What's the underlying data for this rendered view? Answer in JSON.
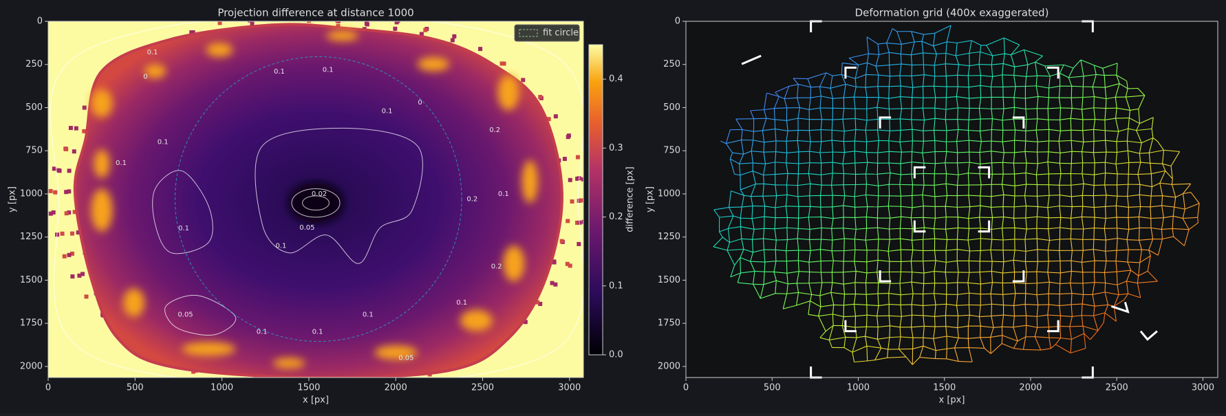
{
  "chart_data": [
    {
      "type": "heatmap",
      "title": "Projection difference at distance 1000",
      "xlabel": "x [px]",
      "ylabel": "y [px]",
      "xlim": [
        0,
        3080
      ],
      "ylim": [
        2064,
        0
      ],
      "xticks": [
        0,
        500,
        1000,
        1500,
        2000,
        2500,
        3000
      ],
      "yticks": [
        0,
        250,
        500,
        750,
        1000,
        1250,
        1500,
        1750,
        2000
      ],
      "colorbar": {
        "label": "difference [px]",
        "clim": [
          0,
          0.45
        ],
        "ticks": [
          {
            "value": 0,
            "label": "0.0"
          },
          0.1,
          0.2,
          0.3,
          0.4
        ]
      },
      "legend": {
        "label": "fit circle",
        "corner": "upper right"
      },
      "fit_circle": {
        "cx": 1555,
        "cy": 1030,
        "r": 825
      },
      "contour_labels": [
        {
          "x": 1560,
          "y": 1000,
          "value": 0.02
        },
        {
          "x": 1490,
          "y": 1195,
          "value": 0.05
        },
        {
          "x": 1340,
          "y": 1300,
          "value": 0.1
        },
        {
          "x": 780,
          "y": 1200,
          "value": 0.1
        },
        {
          "x": 660,
          "y": 700,
          "value": 0.1
        },
        {
          "x": 1950,
          "y": 520,
          "value": 0.1
        },
        {
          "x": 2140,
          "y": 470,
          "value": 0
        },
        {
          "x": 1840,
          "y": 1700,
          "value": 0.1
        },
        {
          "x": 1550,
          "y": 1800,
          "value": 0.1
        },
        {
          "x": 1230,
          "y": 1800,
          "value": 0.1
        },
        {
          "x": 790,
          "y": 1700,
          "value": 0.05
        },
        {
          "x": 2380,
          "y": 1630,
          "value": 0.1
        },
        {
          "x": 2580,
          "y": 1420,
          "value": 0.2
        },
        {
          "x": 2570,
          "y": 630,
          "value": 0.2
        },
        {
          "x": 2440,
          "y": 1030,
          "value": 0.2
        },
        {
          "x": 2620,
          "y": 1000,
          "value": 0.1
        },
        {
          "x": 600,
          "y": 180,
          "value": 0.1
        },
        {
          "x": 560,
          "y": 320,
          "value": 0
        },
        {
          "x": 1330,
          "y": 290,
          "value": 0.1
        },
        {
          "x": 1610,
          "y": 280,
          "value": 0.1
        },
        {
          "x": 2060,
          "y": 1950,
          "value": 0.05
        },
        {
          "x": 420,
          "y": 820,
          "value": 0.1
        }
      ]
    },
    {
      "type": "mesh",
      "title": "Deformation grid (400x exaggerated)",
      "xlabel": "x [px]",
      "ylabel": "y [px]",
      "xlim": [
        0,
        3086
      ],
      "ylim": [
        2064,
        0
      ],
      "xticks": [
        0,
        500,
        1000,
        1500,
        2000,
        2500,
        3000
      ],
      "yticks": [
        0,
        250,
        500,
        750,
        1000,
        1250,
        1500,
        1750,
        2000
      ]
    }
  ]
}
